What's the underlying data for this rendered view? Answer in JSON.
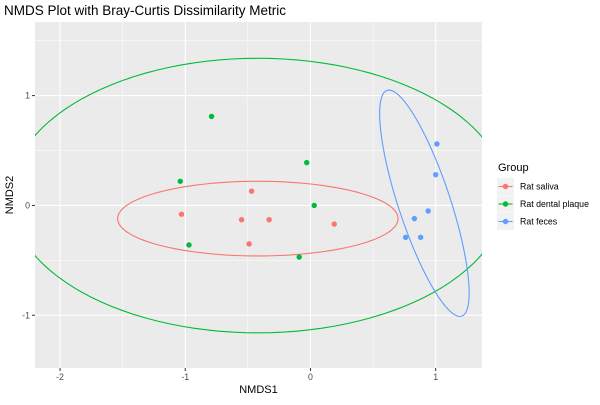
{
  "chart_data": {
    "type": "scatter",
    "title": "NMDS Plot with Bray-Curtis Dissimilarity Metric",
    "xlabel": "NMDS1",
    "ylabel": "NMDS2",
    "xlim": [
      -2.2,
      1.37
    ],
    "ylim": [
      -1.48,
      1.67
    ],
    "x_ticks": [
      -2,
      -1,
      0,
      1
    ],
    "y_ticks": [
      -1,
      0,
      1
    ],
    "x_tick_labels": [
      "-2",
      "-1",
      "0",
      "1"
    ],
    "y_tick_labels": [
      "-1",
      "0",
      "1"
    ],
    "grid": true,
    "background": "#ebebeb",
    "legend": {
      "title": "Group",
      "position": "right"
    },
    "series": [
      {
        "name": "Rat saliva",
        "color": "#F8766D",
        "points": [
          {
            "x": -1.03,
            "y": -0.08
          },
          {
            "x": -0.47,
            "y": 0.13
          },
          {
            "x": -0.55,
            "y": -0.13
          },
          {
            "x": -0.33,
            "y": -0.13
          },
          {
            "x": -0.49,
            "y": -0.35
          },
          {
            "x": 0.19,
            "y": -0.17
          }
        ],
        "ellipse": {
          "cx": -0.42,
          "cy": -0.12,
          "rx": 1.12,
          "ry": 0.34,
          "angle_deg": 0
        }
      },
      {
        "name": "Rat dental plaque",
        "color": "#00BA38",
        "points": [
          {
            "x": -0.79,
            "y": 0.81
          },
          {
            "x": -0.03,
            "y": 0.39
          },
          {
            "x": -1.04,
            "y": 0.22
          },
          {
            "x": 0.03,
            "y": 0.0
          },
          {
            "x": -0.97,
            "y": -0.36
          },
          {
            "x": -0.09,
            "y": -0.47
          }
        ],
        "ellipse": {
          "cx": -0.42,
          "cy": 0.09,
          "rx": 1.98,
          "ry": 1.25,
          "angle_deg": 0
        }
      },
      {
        "name": "Rat feces",
        "color": "#619CFF",
        "points": [
          {
            "x": 1.01,
            "y": 0.56
          },
          {
            "x": 1.0,
            "y": 0.28
          },
          {
            "x": 0.94,
            "y": -0.05
          },
          {
            "x": 0.83,
            "y": -0.12
          },
          {
            "x": 0.76,
            "y": -0.29
          },
          {
            "x": 0.88,
            "y": -0.29
          }
        ],
        "ellipse": {
          "cx": 0.91,
          "cy": 0.02,
          "rx": 0.21,
          "ry": 1.07,
          "angle_deg": 16
        }
      }
    ]
  }
}
